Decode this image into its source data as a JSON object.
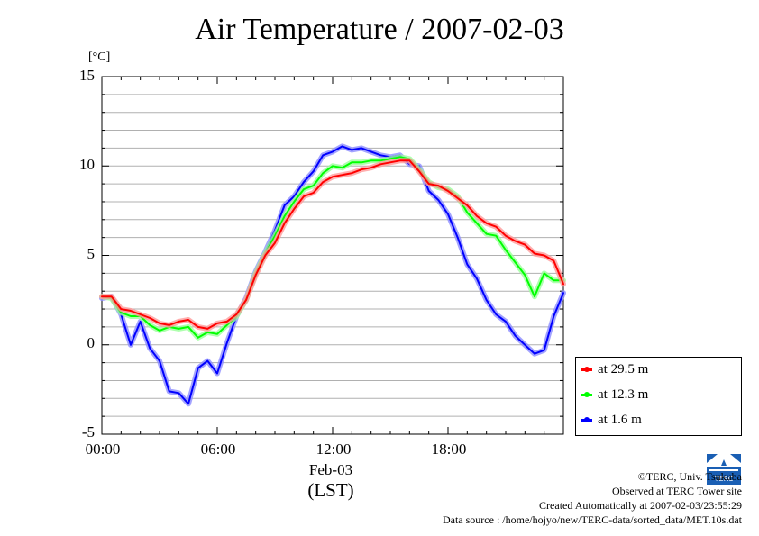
{
  "chart_data": {
    "type": "line",
    "title": "Air Temperature / 2007-02-03",
    "ylabel": "[°C]",
    "xlabel": "Feb-03",
    "xlabel2": "(LST)",
    "ylim": [
      -5,
      15
    ],
    "xlim": [
      0,
      24
    ],
    "yticks": [
      "15",
      "10",
      "5",
      "0",
      "-5"
    ],
    "xticks": [
      "00:00",
      "06:00",
      "12:00",
      "18:00"
    ],
    "grid": "horizontal",
    "legend_placement": "bottom-right outside",
    "x": [
      0,
      0.5,
      1,
      1.5,
      2,
      2.5,
      3,
      3.5,
      4,
      4.5,
      5,
      5.5,
      6,
      6.5,
      7,
      7.5,
      8,
      8.5,
      9,
      9.5,
      10,
      10.5,
      11,
      11.5,
      12,
      12.5,
      13,
      13.5,
      14,
      14.5,
      15,
      15.5,
      16,
      16.5,
      17,
      17.5,
      18,
      18.5,
      19,
      19.5,
      20,
      20.5,
      21,
      21.5,
      22,
      22.5,
      23,
      23.5,
      24
    ],
    "series": [
      {
        "name": "at 29.5 m",
        "color": "#ff0000",
        "values": [
          2.7,
          2.7,
          2.0,
          1.9,
          1.7,
          1.5,
          1.2,
          1.1,
          1.3,
          1.4,
          1.0,
          0.9,
          1.2,
          1.3,
          1.7,
          2.5,
          3.9,
          5.0,
          5.7,
          6.8,
          7.6,
          8.3,
          8.5,
          9.1,
          9.4,
          9.5,
          9.6,
          9.8,
          9.9,
          10.1,
          10.2,
          10.3,
          10.3,
          9.7,
          9.0,
          8.9,
          8.6,
          8.2,
          7.8,
          7.2,
          6.8,
          6.6,
          6.1,
          5.8,
          5.6,
          5.1,
          5.0,
          4.7,
          3.4
        ]
      },
      {
        "name": "at 12.3 m",
        "color": "#00ff00",
        "values": [
          2.7,
          2.6,
          1.8,
          1.6,
          1.6,
          1.1,
          0.8,
          1.0,
          0.9,
          1.0,
          0.4,
          0.7,
          0.6,
          1.1,
          1.6,
          2.5,
          4.0,
          5.1,
          6.1,
          7.2,
          8.0,
          8.7,
          8.9,
          9.6,
          10.0,
          9.9,
          10.2,
          10.2,
          10.3,
          10.3,
          10.4,
          10.5,
          10.4,
          9.8,
          9.1,
          8.8,
          8.7,
          8.3,
          7.4,
          6.8,
          6.2,
          6.1,
          5.3,
          4.6,
          3.9,
          2.7,
          4.0,
          3.6,
          3.6
        ]
      },
      {
        "name": "at 1.6 m",
        "color": "#0000ff",
        "values": [
          2.6,
          2.7,
          1.7,
          0,
          1.3,
          -0.2,
          -0.9,
          -2.6,
          -2.7,
          -3.3,
          -1.3,
          -0.9,
          -1.6,
          0.1,
          1.6,
          2.6,
          4.1,
          5.2,
          6.4,
          7.8,
          8.3,
          9.1,
          9.7,
          10.6,
          10.8,
          11.1,
          10.9,
          11.0,
          10.8,
          10.6,
          10.5,
          10.6,
          10.1,
          10.0,
          8.6,
          8.1,
          7.3,
          6.0,
          4.5,
          3.7,
          2.5,
          1.7,
          1.3,
          0.5,
          0,
          -0.5,
          -0.3,
          1.6,
          2.9
        ]
      }
    ]
  },
  "credits": {
    "line1": "©TERC, Univ. Tsukuba",
    "line2": "Observed at TERC Tower site",
    "line3": "Created Automatically at 2007-02-03/23:55:29",
    "line4": "Data source : /home/hojyo/new/TERC-data/sorted_data/MET.10s.dat"
  },
  "logo_text": "TERC"
}
